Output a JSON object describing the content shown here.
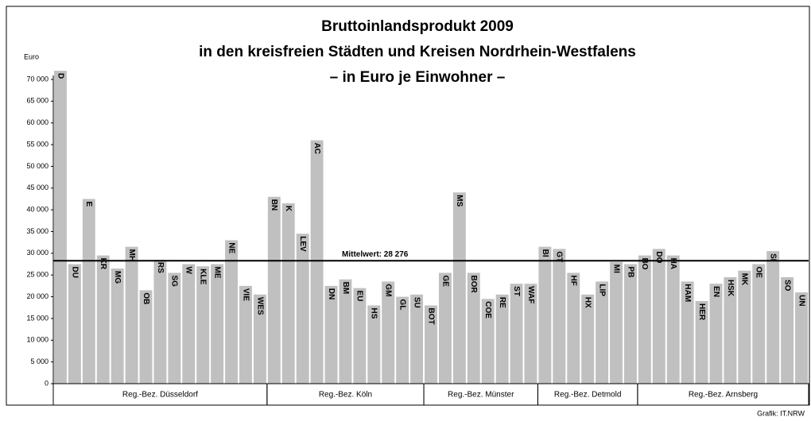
{
  "chart_data": {
    "type": "bar",
    "title": [
      "Bruttoinlandsprodukt 2009",
      "in den kreisfreien Städten und Kreisen Nordrhein-Westfalens",
      "– in Euro je Einwohner –"
    ],
    "y_axis_label": "Euro",
    "source": "Grafik: IT.NRW",
    "categories": [
      "D",
      "DU",
      "E",
      "KR",
      "MG",
      "MH",
      "OB",
      "RS",
      "SG",
      "W",
      "KLE",
      "ME",
      "NE",
      "VIE",
      "WES",
      "BN",
      "K",
      "LEV",
      "AC",
      "DN",
      "BM",
      "EU",
      "HS",
      "GM",
      "GL",
      "SU",
      "BOT",
      "GE",
      "MS",
      "BOR",
      "COE",
      "RE",
      "ST",
      "WAF",
      "BI",
      "GT",
      "HF",
      "HX",
      "LIP",
      "MI",
      "PB",
      "BO",
      "DO",
      "HA",
      "HAM",
      "HER",
      "EN",
      "HSK",
      "MK",
      "OE",
      "SI",
      "SO",
      "UN"
    ],
    "values": [
      72000,
      27500,
      42500,
      29500,
      26500,
      31500,
      21500,
      28500,
      25500,
      27500,
      27000,
      27500,
      33000,
      22500,
      20500,
      43000,
      41500,
      34500,
      56000,
      22500,
      24000,
      22000,
      18000,
      23500,
      20000,
      20500,
      18000,
      25500,
      44000,
      25500,
      19500,
      20500,
      23000,
      23000,
      31500,
      31000,
      25500,
      20500,
      23500,
      28000,
      27500,
      29500,
      31000,
      29500,
      23500,
      19000,
      23000,
      24500,
      26000,
      27500,
      30500,
      24500,
      21000
    ],
    "groups": [
      {
        "name": "Reg.-Bez. Düsseldorf",
        "count": 15
      },
      {
        "name": "Reg.-Bez. Köln",
        "count": 11
      },
      {
        "name": "Reg.-Bez. Münster",
        "count": 8
      },
      {
        "name": "Reg.-Bez. Detmold",
        "count": 7
      },
      {
        "name": "Reg.-Bez. Arnsberg",
        "count": 12
      }
    ],
    "mean": 28276,
    "mean_label": "Mittelwert: 28 276",
    "color": "#c0c0c0",
    "ylim": [
      0,
      70000
    ],
    "yticks": [
      0,
      {
        "value": 5000,
        "label": "5 000"
      },
      {
        "value": 10000,
        "label": "10 000"
      },
      {
        "value": 15000,
        "label": "15 000"
      },
      {
        "value": 20000,
        "label": "20 000"
      },
      {
        "value": 25000,
        "label": "25 000"
      },
      {
        "value": 30000,
        "label": "30 000"
      },
      {
        "value": 35000,
        "label": "35 000"
      },
      {
        "value": 40000,
        "label": "40 000"
      },
      {
        "value": 45000,
        "label": "45 000"
      },
      {
        "value": 50000,
        "label": "50 000"
      },
      {
        "value": 55000,
        "label": "55 000"
      },
      {
        "value": 60000,
        "label": "60 000"
      },
      {
        "value": 65000,
        "label": "65 000"
      },
      {
        "value": 70000,
        "label": "70 000"
      }
    ]
  }
}
